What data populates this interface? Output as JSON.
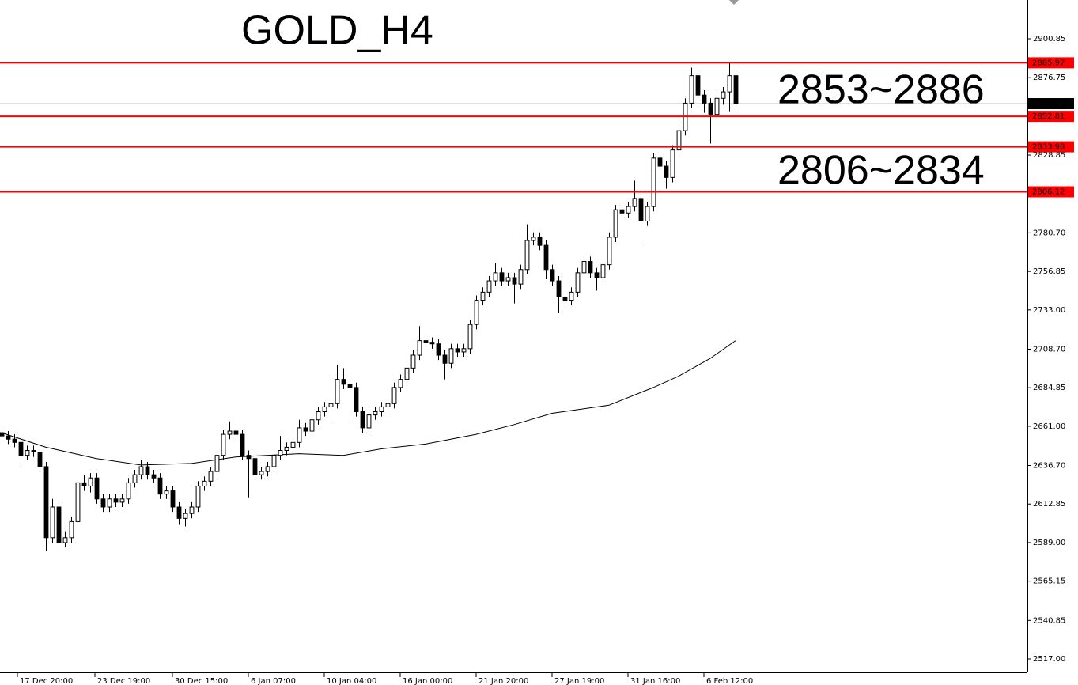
{
  "chart_data": {
    "type": "candlestick",
    "title": "GOLD_H4",
    "annotations": [
      {
        "text": "2853~2886",
        "color": "#000080"
      },
      {
        "text": "2806~2834",
        "color": "#ff0000"
      }
    ],
    "open": [
      2657,
      2655,
      2653,
      2651,
      2643,
      2646,
      2645,
      2636,
      2592,
      2611,
      2589,
      2592,
      2602,
      2626,
      2624,
      2629,
      2616,
      2611,
      2616,
      2614,
      2616,
      2626,
      2631,
      2636,
      2631,
      2629,
      2619,
      2621,
      2611,
      2604,
      2607,
      2611,
      2624,
      2627,
      2633,
      2643,
      2656,
      2658,
      2656,
      2643,
      2641,
      2631,
      2633,
      2636,
      2643,
      2646,
      2648,
      2651,
      2660,
      2658,
      2665,
      2670,
      2673,
      2675,
      2690,
      2687,
      2685,
      2670,
      2660,
      2668,
      2670,
      2673,
      2675,
      2685,
      2690,
      2697,
      2705,
      2714,
      2713,
      2712,
      2705,
      2700,
      2709,
      2707,
      2709,
      2724,
      2739,
      2744,
      2751,
      2756,
      2751,
      2753,
      2749,
      2758,
      2776,
      2778,
      2773,
      2758,
      2751,
      2741,
      2739,
      2744,
      2756,
      2763,
      2756,
      2753,
      2761,
      2778,
      2795,
      2793,
      2797,
      2802,
      2788,
      2797,
      2827,
      2822,
      2815,
      2832,
      2844,
      2861,
      2878,
      2866,
      2861,
      2854,
      2864,
      2868,
      2878
    ],
    "high": [
      2660,
      2658,
      2656,
      2654,
      2649,
      2649,
      2648,
      2639,
      2616,
      2614,
      2596,
      2605,
      2631,
      2631,
      2632,
      2632,
      2619,
      2619,
      2619,
      2619,
      2629,
      2634,
      2640,
      2639,
      2634,
      2632,
      2624,
      2624,
      2614,
      2610,
      2614,
      2627,
      2630,
      2636,
      2646,
      2659,
      2664,
      2662,
      2659,
      2646,
      2644,
      2636,
      2639,
      2646,
      2655,
      2651,
      2654,
      2665,
      2663,
      2668,
      2673,
      2676,
      2678,
      2699,
      2697,
      2690,
      2688,
      2673,
      2671,
      2673,
      2676,
      2678,
      2688,
      2693,
      2700,
      2708,
      2723,
      2717,
      2716,
      2715,
      2708,
      2712,
      2712,
      2712,
      2727,
      2742,
      2747,
      2754,
      2762,
      2759,
      2756,
      2756,
      2761,
      2786,
      2781,
      2781,
      2776,
      2761,
      2754,
      2744,
      2747,
      2759,
      2766,
      2766,
      2759,
      2764,
      2781,
      2798,
      2798,
      2800,
      2813,
      2805,
      2800,
      2830,
      2830,
      2825,
      2835,
      2847,
      2864,
      2883,
      2881,
      2869,
      2864,
      2867,
      2871,
      2886,
      2881
    ],
    "low": [
      2652,
      2650,
      2648,
      2638,
      2640,
      2642,
      2633,
      2584,
      2589,
      2584,
      2586,
      2589,
      2600,
      2621,
      2620,
      2613,
      2608,
      2608,
      2611,
      2611,
      2613,
      2623,
      2628,
      2628,
      2626,
      2616,
      2616,
      2608,
      2600,
      2599,
      2604,
      2608,
      2621,
      2624,
      2630,
      2640,
      2653,
      2653,
      2640,
      2617,
      2628,
      2628,
      2630,
      2633,
      2640,
      2643,
      2645,
      2648,
      2655,
      2655,
      2662,
      2667,
      2665,
      2672,
      2684,
      2665,
      2667,
      2657,
      2657,
      2665,
      2667,
      2670,
      2672,
      2682,
      2687,
      2694,
      2702,
      2710,
      2709,
      2702,
      2690,
      2697,
      2704,
      2704,
      2706,
      2721,
      2736,
      2741,
      2748,
      2748,
      2748,
      2737,
      2746,
      2755,
      2773,
      2770,
      2752,
      2748,
      2731,
      2736,
      2736,
      2741,
      2753,
      2753,
      2745,
      2750,
      2758,
      2775,
      2790,
      2790,
      2794,
      2774,
      2785,
      2794,
      2805,
      2808,
      2812,
      2829,
      2841,
      2858,
      2860,
      2855,
      2836,
      2851,
      2860,
      2856,
      2858
    ],
    "close": [
      2655,
      2653,
      2651,
      2643,
      2646,
      2645,
      2636,
      2592,
      2611,
      2589,
      2592,
      2602,
      2626,
      2624,
      2629,
      2616,
      2611,
      2616,
      2614,
      2616,
      2626,
      2631,
      2636,
      2631,
      2629,
      2619,
      2621,
      2611,
      2604,
      2607,
      2611,
      2624,
      2627,
      2633,
      2643,
      2656,
      2658,
      2656,
      2643,
      2641,
      2631,
      2633,
      2636,
      2643,
      2646,
      2648,
      2651,
      2660,
      2658,
      2665,
      2670,
      2673,
      2675,
      2690,
      2687,
      2685,
      2670,
      2660,
      2668,
      2670,
      2673,
      2675,
      2685,
      2690,
      2697,
      2705,
      2714,
      2713,
      2712,
      2705,
      2700,
      2709,
      2707,
      2709,
      2724,
      2739,
      2744,
      2751,
      2756,
      2751,
      2753,
      2749,
      2758,
      2776,
      2778,
      2773,
      2758,
      2751,
      2741,
      2739,
      2744,
      2756,
      2763,
      2756,
      2753,
      2761,
      2778,
      2795,
      2793,
      2797,
      2802,
      2788,
      2797,
      2827,
      2822,
      2815,
      2832,
      2844,
      2861,
      2878,
      2866,
      2861,
      2854,
      2864,
      2868,
      2878,
      2860.69
    ],
    "ma": {
      "color": "#000000",
      "x": [
        0,
        7,
        15,
        22,
        30,
        37,
        47,
        54,
        60,
        67,
        75,
        81,
        87,
        96,
        103,
        107,
        112,
        116
      ],
      "values": [
        2657,
        2648,
        2641,
        2637,
        2638,
        2642,
        2644,
        2643,
        2647,
        2650,
        2656,
        2662,
        2669,
        2674,
        2685,
        2692,
        2703,
        2714
      ]
    },
    "levels": [
      {
        "value": 2885.97,
        "color": "#ff0000"
      },
      {
        "value": 2852.81,
        "color": "#ff0000"
      },
      {
        "value": 2833.98,
        "color": "#ff0000"
      },
      {
        "value": 2806.12,
        "color": "#ff0000"
      }
    ],
    "current_price": 2860.69,
    "xlim": [
      -0.25,
      162.125
    ],
    "ylim": [
      2508.68,
      2924.84
    ],
    "xticks": [
      {
        "value": 2.5,
        "label": "17 Dec 20:00"
      },
      {
        "value": 14.75,
        "label": "23 Dec 19:00"
      },
      {
        "value": 27,
        "label": "30 Dec 15:00"
      },
      {
        "value": 39,
        "label": "6 Jan 07:00"
      },
      {
        "value": 51,
        "label": "10 Jan 04:00"
      },
      {
        "value": 63,
        "label": "16 Jan 00:00"
      },
      {
        "value": 75,
        "label": "21 Jan 20:00"
      },
      {
        "value": 87,
        "label": "27 Jan 19:00"
      },
      {
        "value": 99,
        "label": "31 Jan 16:00"
      },
      {
        "value": 111,
        "label": "6 Feb 12:00"
      }
    ],
    "yticks": [
      {
        "value": 2900.85,
        "label": "2900.85"
      },
      {
        "value": 2876.75,
        "label": "2876.75"
      },
      {
        "value": 2828.85,
        "label": "2828.85"
      },
      {
        "value": 2780.7,
        "label": "2780.70"
      },
      {
        "value": 2756.85,
        "label": "2756.85"
      },
      {
        "value": 2733,
        "label": "2733.00"
      },
      {
        "value": 2708.7,
        "label": "2708.70"
      },
      {
        "value": 2684.85,
        "label": "2684.85"
      },
      {
        "value": 2661,
        "label": "2661.00"
      },
      {
        "value": 2636.7,
        "label": "2636.70"
      },
      {
        "value": 2612.85,
        "label": "2612.85"
      },
      {
        "value": 2589,
        "label": "2589.00"
      },
      {
        "value": 2565.15,
        "label": "2565.15"
      },
      {
        "value": 2540.85,
        "label": "2540.85"
      },
      {
        "value": 2517,
        "label": "2517.00"
      }
    ]
  }
}
